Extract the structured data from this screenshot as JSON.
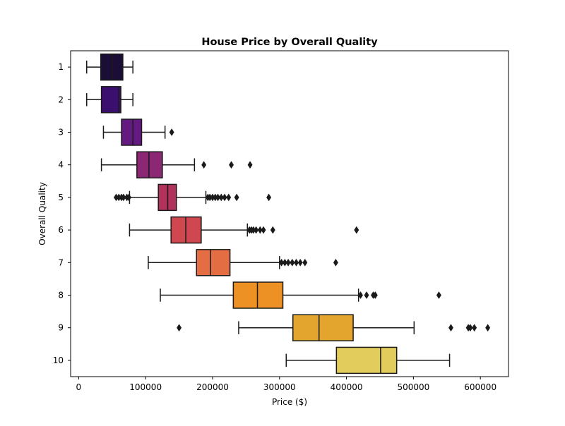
{
  "chart_data": {
    "type": "boxplot",
    "orientation": "horizontal",
    "title": "House Price by Overall Quality",
    "xlabel": "Price ($)",
    "ylabel": "Overall Quality",
    "xlim": [
      -12000,
      642000
    ],
    "x_ticks": [
      0,
      100000,
      200000,
      300000,
      400000,
      500000,
      600000
    ],
    "x_tick_labels": [
      "0",
      "100000",
      "200000",
      "300000",
      "400000",
      "500000",
      "600000"
    ],
    "categories": [
      "1",
      "2",
      "3",
      "4",
      "5",
      "6",
      "7",
      "8",
      "9",
      "10"
    ],
    "grid": false,
    "legend": "none",
    "series": [
      {
        "category": "1",
        "color": "#1a0d36",
        "whisker_low": 12000,
        "q1": 33000,
        "median": 50000,
        "q3": 66000,
        "whisker_high": 81000,
        "outliers": []
      },
      {
        "category": "2",
        "color": "#3b0f6e",
        "whisker_low": 12000,
        "q1": 34000,
        "median": 60000,
        "q3": 63000,
        "whisker_high": 81000,
        "outliers": []
      },
      {
        "category": "3",
        "color": "#641a80",
        "whisker_low": 37000,
        "q1": 64000,
        "median": 81000,
        "q3": 94000,
        "whisker_high": 129000,
        "outliers": [
          139000
        ]
      },
      {
        "category": "4",
        "color": "#8b2773",
        "whisker_low": 34000,
        "q1": 87000,
        "median": 105000,
        "q3": 125000,
        "whisker_high": 173000,
        "outliers": [
          187000,
          228000,
          256000
        ]
      },
      {
        "category": "5",
        "color": "#b1325b",
        "whisker_low": 76000,
        "q1": 119000,
        "median": 133000,
        "q3": 146000,
        "whisker_high": 190000,
        "outliers": [
          56000,
          60000,
          64000,
          67000,
          72000,
          75000,
          193000,
          196000,
          200000,
          204000,
          208000,
          213000,
          218000,
          224000,
          236000,
          284000
        ]
      },
      {
        "category": "6",
        "color": "#d0484f",
        "whisker_low": 76000,
        "q1": 138000,
        "median": 160000,
        "q3": 183000,
        "whisker_high": 252000,
        "outliers": [
          255000,
          258000,
          261000,
          265000,
          271000,
          276000,
          290000,
          415000
        ]
      },
      {
        "category": "7",
        "color": "#e46d44",
        "whisker_low": 104000,
        "q1": 176000,
        "median": 197000,
        "q3": 226000,
        "whisker_high": 300000,
        "outliers": [
          303000,
          308000,
          313000,
          319000,
          325000,
          331000,
          338000,
          384000
        ]
      },
      {
        "category": "8",
        "color": "#ee9124",
        "whisker_low": 122000,
        "q1": 231000,
        "median": 267000,
        "q3": 305000,
        "whisker_high": 418000,
        "outliers": [
          421000,
          430000,
          440000,
          443000,
          538000
        ]
      },
      {
        "category": "9",
        "color": "#e3a52e",
        "whisker_low": 239000,
        "q1": 320000,
        "median": 359000,
        "q3": 410000,
        "whisker_high": 501000,
        "outliers": [
          150000,
          556000,
          582000,
          585000,
          591000,
          611000
        ]
      },
      {
        "category": "10",
        "color": "#e2cc5b",
        "whisker_low": 310000,
        "q1": 385000,
        "median": 451000,
        "q3": 475000,
        "whisker_high": 554000,
        "outliers": []
      }
    ]
  }
}
